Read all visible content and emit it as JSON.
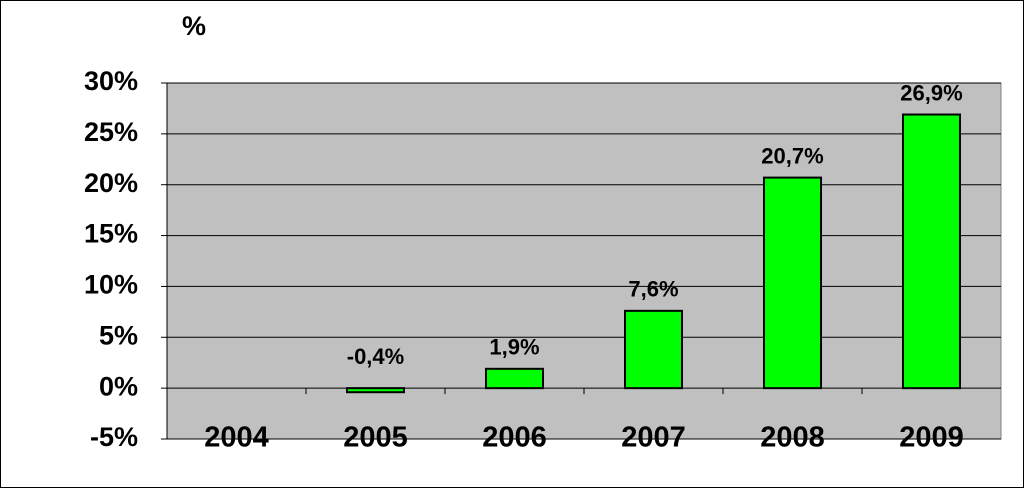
{
  "chart_data": {
    "type": "bar",
    "y_label": "%",
    "categories": [
      "2004",
      "2005",
      "2006",
      "2007",
      "2008",
      "2009"
    ],
    "values": [
      null,
      -0.4,
      1.9,
      7.6,
      20.7,
      26.9
    ],
    "value_labels": [
      null,
      "-0,4%",
      "1,9%",
      "7,6%",
      "20,7%",
      "26,9%"
    ],
    "color": "#00ff00",
    "ylim": [
      -5,
      30
    ],
    "yticks": [
      {
        "value": -5,
        "label": "-5%"
      },
      {
        "value": 0,
        "label": "0%"
      },
      {
        "value": 5,
        "label": "5%"
      },
      {
        "value": 10,
        "label": "10%"
      },
      {
        "value": 15,
        "label": "15%"
      },
      {
        "value": 20,
        "label": "20%"
      },
      {
        "value": 25,
        "label": "25%"
      },
      {
        "value": 30,
        "label": "30%"
      }
    ],
    "grid": true
  }
}
